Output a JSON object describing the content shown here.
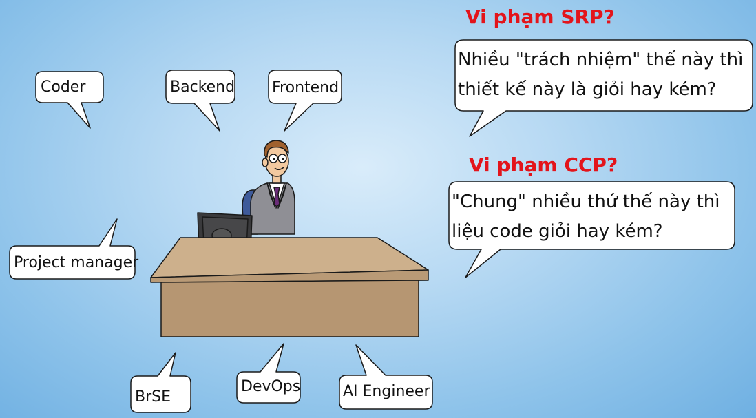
{
  "role_bubbles": {
    "coder": "Coder",
    "backend": "Backend",
    "frontend": "Frontend",
    "project_manager": "Project manager",
    "brse": "BrSE",
    "devops": "DevOps",
    "ai_engineer": "AI Engineer"
  },
  "srp": {
    "heading": "Vi phạm SRP?",
    "line1": "Nhiều  \"trách nhiệm\" thế này thì",
    "line2": "thiết kế  này là giỏi hay kém?"
  },
  "ccp": {
    "heading": "Vi phạm CCP?",
    "line1": "\"Chung\" nhiều thứ thế này thì",
    "line2": "liệu code giỏi hay kém?"
  },
  "colors": {
    "heading": "#e3141b",
    "desk": "#cdb08c",
    "bubble_fill": "#ffffff",
    "bubble_stroke": "#1a1a1a"
  }
}
